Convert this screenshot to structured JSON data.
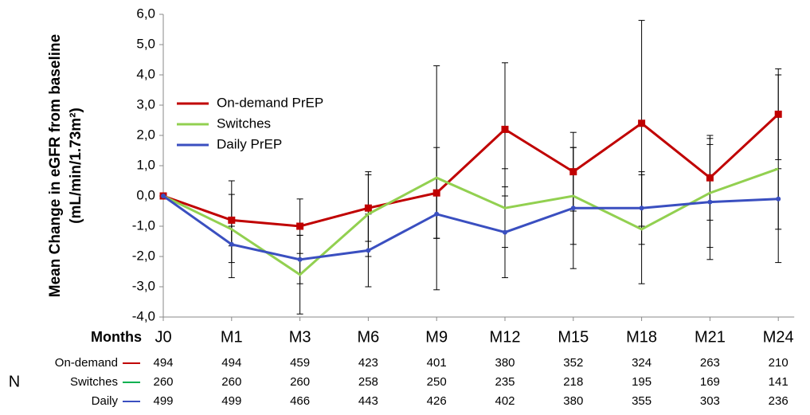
{
  "chart_data": {
    "type": "line",
    "y_label": [
      "Mean Change in eGFR from baseline",
      "(mL/min/1.73m²)"
    ],
    "x_label": "Months",
    "categories": [
      "J0",
      "M1",
      "M3",
      "M6",
      "M9",
      "M12",
      "M15",
      "M18",
      "M21",
      "M24"
    ],
    "ylim": [
      -4,
      6
    ],
    "yticks": [
      {
        "value": -4,
        "label": "-4,0"
      },
      {
        "value": -3,
        "label": "-3,0"
      },
      {
        "value": -2,
        "label": "-2,0"
      },
      {
        "value": -1,
        "label": "-1,0"
      },
      {
        "value": 0,
        "label": "0,0"
      },
      {
        "value": 1,
        "label": "1,0"
      },
      {
        "value": 2,
        "label": "2,0"
      },
      {
        "value": 3,
        "label": "3,0"
      },
      {
        "value": 4,
        "label": "4,0"
      },
      {
        "value": 5,
        "label": "5,0"
      },
      {
        "value": 6,
        "label": "6,0"
      }
    ],
    "legend": "upper left",
    "series": [
      {
        "name": "On-demand PrEP",
        "color": "#c00000",
        "marker": "square",
        "values": [
          0,
          -0.8,
          -1.0,
          -0.4,
          0.1,
          2.2,
          0.8,
          2.4,
          0.6,
          2.7
        ],
        "errors": [
          0,
          0.85,
          0.9,
          1.1,
          1.5,
          2.2,
          1.3,
          3.4,
          1.4,
          1.5
        ]
      },
      {
        "name": "Switches",
        "color": "#92d050",
        "marker": "none",
        "values": [
          0,
          -1.1,
          -2.6,
          -0.6,
          0.6,
          -0.4,
          0.0,
          -1.1,
          0.1,
          0.9
        ],
        "errors": [
          0,
          1.6,
          1.3,
          1.4,
          3.7,
          1.3,
          1.6,
          1.8,
          1.8,
          3.1
        ]
      },
      {
        "name": "Daily PrEP",
        "color": "#3a4fc0",
        "marker": "dot",
        "values": [
          0,
          -1.6,
          -2.1,
          -1.8,
          -0.6,
          -1.2,
          -0.4,
          -0.4,
          -0.2,
          -0.1
        ],
        "errors": [
          0,
          0.6,
          0.8,
          1.2,
          0.8,
          1.5,
          2.0,
          1.2,
          1.9,
          1.0
        ]
      }
    ],
    "n_table": {
      "label": "N",
      "rows": [
        {
          "name": "On-demand",
          "color": "#c00000",
          "values": [
            494,
            494,
            459,
            423,
            401,
            380,
            352,
            324,
            263,
            210
          ]
        },
        {
          "name": "Switches",
          "color": "#00b050",
          "values": [
            260,
            260,
            260,
            258,
            250,
            235,
            218,
            195,
            169,
            141
          ]
        },
        {
          "name": "Daily",
          "color": "#3a4fc0",
          "values": [
            499,
            499,
            466,
            443,
            426,
            402,
            380,
            355,
            303,
            236
          ]
        }
      ]
    }
  }
}
